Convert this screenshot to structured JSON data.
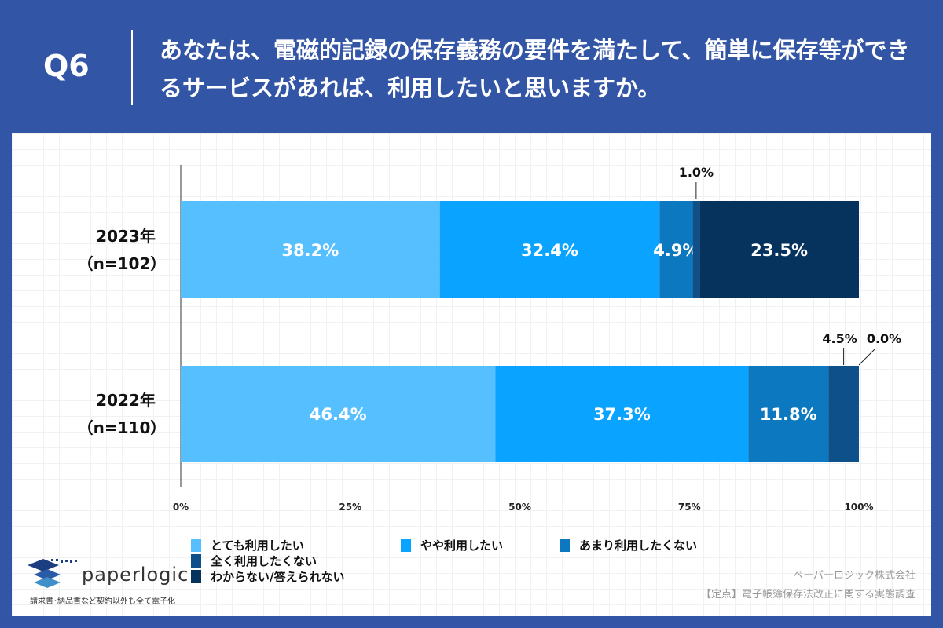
{
  "header": {
    "question": "Q6",
    "title": "あなたは、電磁的記録の保存義務の要件を満たして、簡単に保存等ができるサービスがあれば、利用したいと思いますか。"
  },
  "chart_data": {
    "type": "bar",
    "orientation": "horizontal",
    "stacked": true,
    "categories": [
      {
        "year": "2023年",
        "n": "（n=102）"
      },
      {
        "year": "2022年",
        "n": "（n=110）"
      }
    ],
    "series": [
      {
        "name": "とても利用したい",
        "color": "#55bfff",
        "values": [
          38.2,
          46.4
        ],
        "labels": [
          "38.2%",
          "46.4%"
        ]
      },
      {
        "name": "やや利用したい",
        "color": "#0aa3ff",
        "values": [
          32.4,
          37.3
        ],
        "labels": [
          "32.4%",
          "37.3%"
        ]
      },
      {
        "name": "あまり利用したくない",
        "color": "#0c78c0",
        "values": [
          4.9,
          11.8
        ],
        "labels": [
          "4.9%",
          "11.8%"
        ]
      },
      {
        "name": "全く利用したくない",
        "color": "#0e5089",
        "values": [
          1.0,
          4.5
        ],
        "labels": [
          "1.0%",
          "4.5%"
        ]
      },
      {
        "name": "わからない/答えられない",
        "color": "#06325e",
        "values": [
          23.5,
          0.0
        ],
        "labels": [
          "23.5%",
          "0.0%"
        ]
      }
    ],
    "xlim": [
      0,
      100
    ],
    "xticks": [
      "0%",
      "25%",
      "50%",
      "75%",
      "100%"
    ],
    "legend": "bottom",
    "grid": false
  },
  "footer": {
    "logo": "paperlogic",
    "tagline": "請求書･納品書など契約以外も全て電子化",
    "company": "ペーパーロジック株式会社",
    "survey": "【定点】電子帳簿保存法改正に関する実態調査"
  }
}
